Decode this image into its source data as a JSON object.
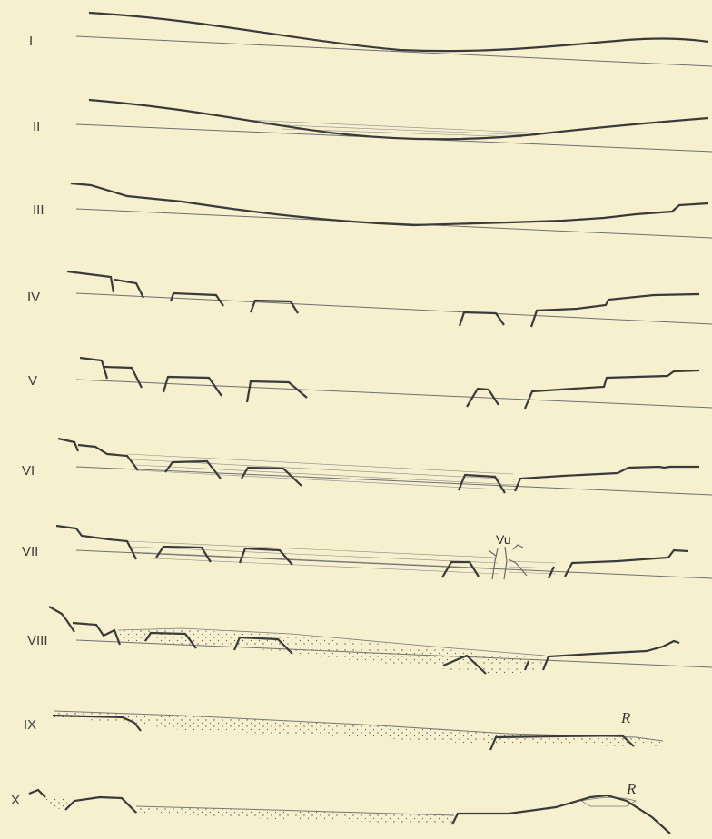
{
  "profiles": [
    {
      "label": "I"
    },
    {
      "label": "II"
    },
    {
      "label": "III"
    },
    {
      "label": "IV"
    },
    {
      "label": "V"
    },
    {
      "label": "VI"
    },
    {
      "label": "VII"
    },
    {
      "label": "VIII"
    },
    {
      "label": "IX",
      "annotation": "R"
    },
    {
      "label": "X",
      "annotation": "R"
    }
  ],
  "annotations": {
    "vu": "Vu"
  },
  "colors": {
    "background": "#f6f0cf",
    "surface_line": "#3a3a3a",
    "reference_line": "#6f6f6f",
    "hatching": "#8a8a8a",
    "stipple": "#555555"
  }
}
